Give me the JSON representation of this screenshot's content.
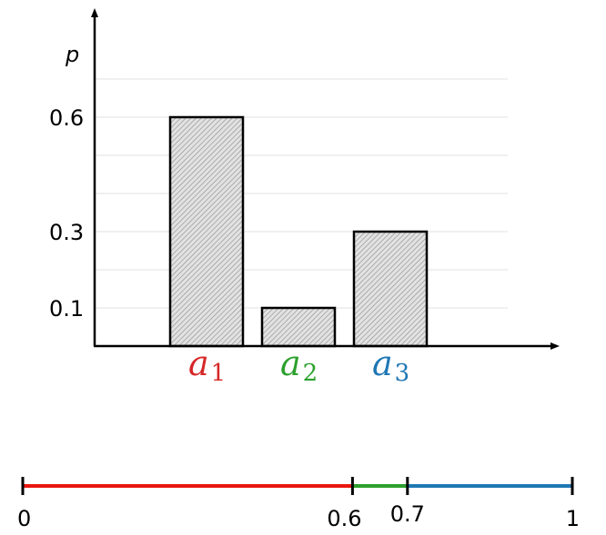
{
  "chart_data": [
    {
      "type": "bar",
      "ylabel": "p",
      "xlabel": "",
      "categories": [
        {
          "base": "a",
          "sub": "1",
          "color": "#d62728"
        },
        {
          "base": "a",
          "sub": "2",
          "color": "#2ca02c"
        },
        {
          "base": "a",
          "sub": "3",
          "color": "#1f77b4"
        }
      ],
      "values": [
        0.6,
        0.1,
        0.3
      ],
      "yticks": [
        "0.6",
        "0.3",
        "0.1"
      ],
      "ytick_values": [
        0.6,
        0.3,
        0.1
      ],
      "gridlines": [
        0.1,
        0.2,
        0.3,
        0.4,
        0.5,
        0.6,
        0.7
      ],
      "ylim": [
        0,
        0.7
      ],
      "grid": true,
      "bar_fill": "#d8d8d8",
      "bar_hatch": "diagonal"
    },
    {
      "type": "line",
      "description_free": true,
      "segments": [
        {
          "from": 0,
          "to": 0.6,
          "color": "#e8170f"
        },
        {
          "from": 0.6,
          "to": 0.7,
          "color": "#2ca02c"
        },
        {
          "from": 0.7,
          "to": 1,
          "color": "#1f77b4"
        }
      ],
      "ticks": [
        0,
        0.6,
        0.7,
        1
      ],
      "tick_labels": [
        "0",
        "0.6",
        "0.7",
        "1"
      ],
      "xlim": [
        0,
        1
      ]
    }
  ]
}
